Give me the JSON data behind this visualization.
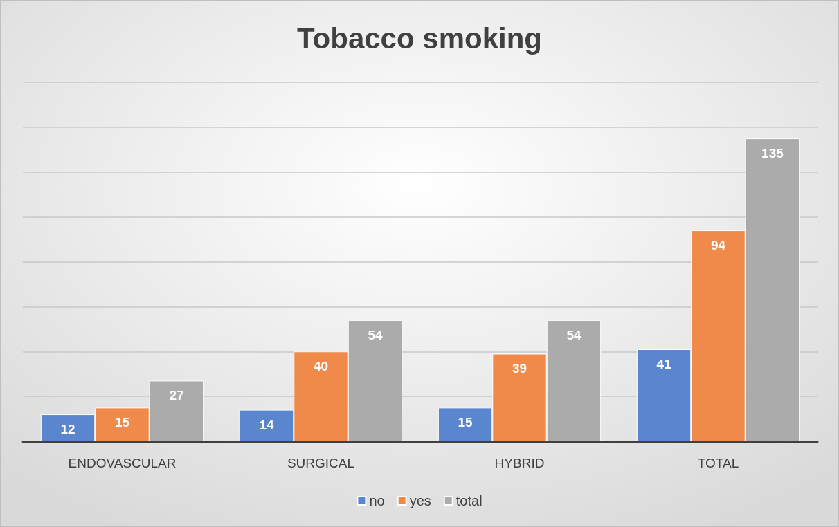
{
  "chart_data": {
    "type": "bar",
    "title": "Tobacco smoking",
    "categories": [
      "ENDOVASCULAR",
      "SURGICAL",
      "HYBRID",
      "TOTAL"
    ],
    "series": [
      {
        "name": "no",
        "color": "#5a86cf",
        "values": [
          12,
          14,
          15,
          41
        ]
      },
      {
        "name": "yes",
        "color": "#ef8a4a",
        "values": [
          15,
          40,
          39,
          94
        ]
      },
      {
        "name": "total",
        "color": "#ababab",
        "values": [
          27,
          54,
          54,
          135
        ]
      }
    ],
    "ylim": [
      0,
      160
    ],
    "yticks": [
      {
        "value": 0,
        "label": null
      },
      {
        "value": 20,
        "label": null
      },
      {
        "value": 40,
        "label": null
      },
      {
        "value": 60,
        "label": null
      },
      {
        "value": 80,
        "label": null
      },
      {
        "value": 100,
        "label": null
      },
      {
        "value": 120,
        "label": null
      },
      {
        "value": 140,
        "label": null
      },
      {
        "value": 160,
        "label": null
      }
    ],
    "tick_labels": "x",
    "grid": "y",
    "data_labels": true,
    "legend": "bottom"
  }
}
